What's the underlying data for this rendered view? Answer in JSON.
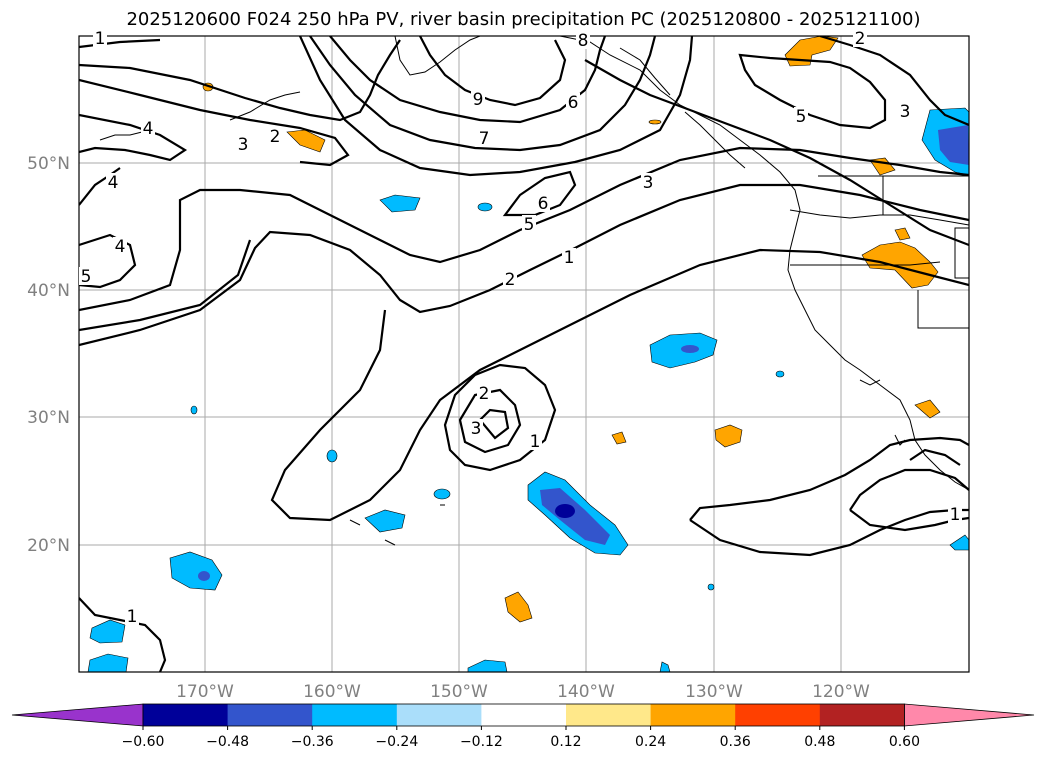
{
  "title": "2025120600 F024 250 hPa PV, river basin precipitation PC (2025120800 - 2025121100)",
  "lat_labels": [
    "50°N",
    "40°N",
    "30°N",
    "20°N"
  ],
  "lon_labels": [
    "170°W",
    "160°W",
    "150°W",
    "140°W",
    "130°W",
    "120°W"
  ],
  "colorbar": {
    "ticks": [
      "−0.60",
      "−0.48",
      "−0.36",
      "−0.24",
      "−0.12",
      "0.12",
      "0.24",
      "0.36",
      "0.48",
      "0.60"
    ],
    "colors": [
      "#9933cc",
      "#000099",
      "#3355cc",
      "#00bbff",
      "#aadefa",
      "#ffffff",
      "#ffe88a",
      "#ffa500",
      "#ff4000",
      "#b22222",
      "#ff88aa"
    ]
  },
  "contour_labels": [
    "1",
    "2",
    "3",
    "4",
    "5",
    "6",
    "7",
    "8",
    "9"
  ],
  "pv_label_instances": [
    {
      "text": "1"
    },
    {
      "text": "2"
    },
    {
      "text": "3"
    },
    {
      "text": "4"
    },
    {
      "text": "4"
    },
    {
      "text": "5"
    },
    {
      "text": "9"
    },
    {
      "text": "7"
    },
    {
      "text": "6"
    },
    {
      "text": "8"
    },
    {
      "text": "6"
    },
    {
      "text": "5"
    },
    {
      "text": "3"
    },
    {
      "text": "1"
    },
    {
      "text": "2"
    },
    {
      "text": "2"
    },
    {
      "text": "3"
    },
    {
      "text": "1"
    },
    {
      "text": "5"
    },
    {
      "text": "3"
    },
    {
      "text": "2"
    },
    {
      "text": "4"
    },
    {
      "text": "1"
    },
    {
      "text": "1"
    }
  ]
}
